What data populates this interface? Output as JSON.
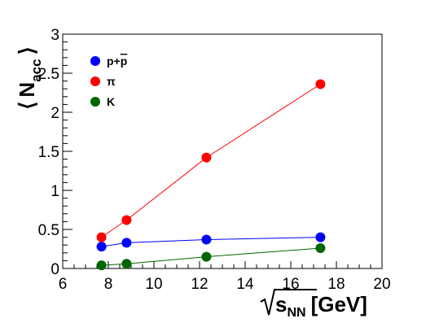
{
  "chart_data": {
    "type": "line",
    "title": "",
    "xlabel": "√s_NN [GeV]",
    "xlabel_main": "s",
    "xlabel_sub": "NN",
    "xlabel_unit": "[GeV]",
    "ylabel": "⟨ N_acc ⟩",
    "ylabel_open": "⟨",
    "ylabel_main": "N",
    "ylabel_sub": "acc",
    "ylabel_close": "⟩",
    "xlim": [
      6,
      20
    ],
    "ylim": [
      0,
      3
    ],
    "x_ticks": [
      6,
      8,
      10,
      12,
      14,
      16,
      18,
      20
    ],
    "x_tick_labels": [
      "6",
      "8",
      "10",
      "12",
      "14",
      "16",
      "18",
      "20"
    ],
    "y_ticks": [
      0,
      0.5,
      1,
      1.5,
      2,
      2.5,
      3
    ],
    "y_tick_labels": [
      "0",
      "0.5",
      "1",
      "1.5",
      "2",
      "2.5",
      "3"
    ],
    "grid": false,
    "legend_position": "top-left",
    "x": [
      7.7,
      8.8,
      12.3,
      17.3
    ],
    "series": [
      {
        "name": "p+p̄",
        "label_main": "p+",
        "label_bar": "p",
        "color": "#0000ff",
        "values": [
          0.28,
          0.33,
          0.37,
          0.4
        ]
      },
      {
        "name": "π",
        "color": "#ff0000",
        "values": [
          0.4,
          0.62,
          1.42,
          2.36
        ]
      },
      {
        "name": "K",
        "color": "#006600",
        "values": [
          0.04,
          0.06,
          0.15,
          0.26
        ]
      }
    ]
  }
}
